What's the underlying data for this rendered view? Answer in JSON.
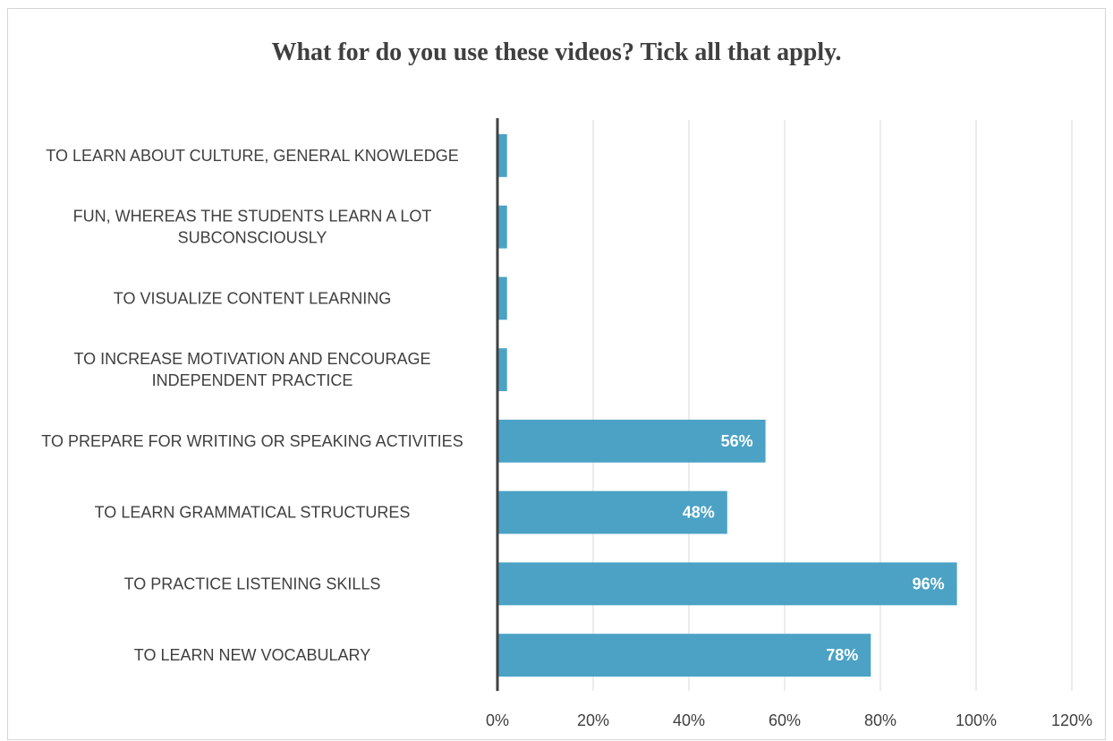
{
  "chart_data": {
    "type": "bar",
    "orientation": "horizontal",
    "title": "What for do you use these videos? Tick all that apply.",
    "xlabel": "",
    "ylabel": "",
    "categories": [
      [
        "TO LEARN ABOUT CULTURE, GENERAL KNOWLEDGE"
      ],
      [
        "FUN, WHEREAS THE STUDENTS LEARN A LOT",
        "SUBCONSCIOUSLY"
      ],
      [
        "TO VISUALIZE CONTENT LEARNING"
      ],
      [
        "TO INCREASE MOTIVATION AND ENCOURAGE",
        "INDEPENDENT PRACTICE"
      ],
      [
        "TO PREPARE FOR WRITING OR SPEAKING ACTIVITIES"
      ],
      [
        "TO LEARN GRAMMATICAL STRUCTURES"
      ],
      [
        "TO PRACTICE LISTENING SKILLS"
      ],
      [
        "TO LEARN NEW VOCABULARY"
      ]
    ],
    "values": [
      2,
      2,
      2,
      2,
      56,
      48,
      96,
      78
    ],
    "data_labels": [
      "",
      "",
      "",
      "",
      "56%",
      "48%",
      "96%",
      "78%"
    ],
    "xlim": [
      0,
      120
    ],
    "xticks": [
      0,
      20,
      40,
      60,
      80,
      100,
      120
    ],
    "xtick_labels": [
      "0%",
      "20%",
      "40%",
      "60%",
      "80%",
      "100%",
      "120%"
    ],
    "grid": true,
    "legend": "none",
    "bar_color": "#4ba2c5"
  }
}
